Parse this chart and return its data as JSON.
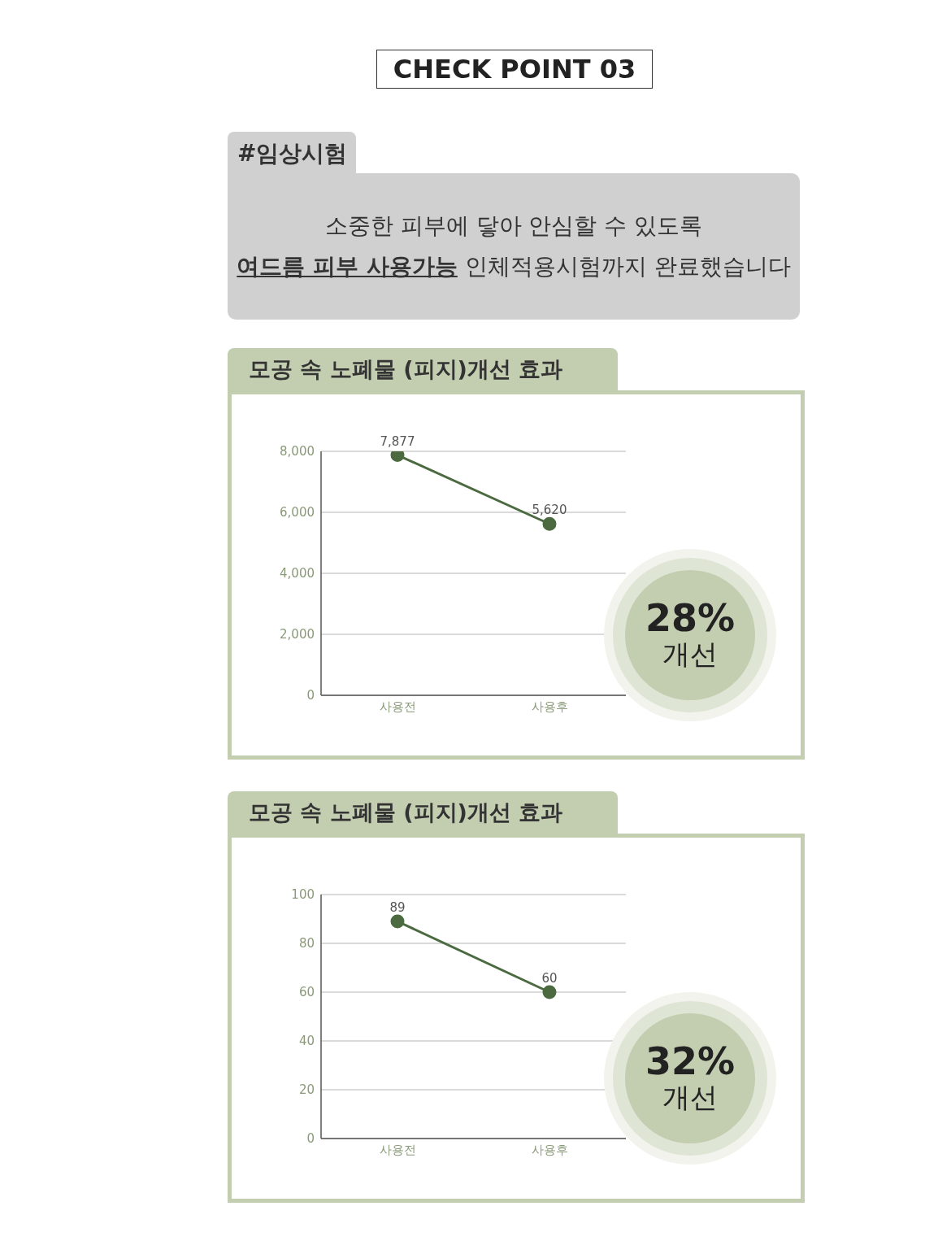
{
  "chart_data": [
    {
      "type": "other",
      "title": "CHECK POINT 03",
      "subtitle": "#임상시험",
      "annotations": [
        "소중한 피부에 닿아 안심할 수 있도록",
        "여드름 피부 사용가능",
        "인체적용시험까지 완료했습니다"
      ]
    },
    {
      "type": "line",
      "title": "모공 속 노폐물 (피지)개선 효과",
      "categories": [
        "사용전",
        "사용후"
      ],
      "values": [
        7877,
        5620
      ],
      "value_labels": [
        "7,877",
        "5,620"
      ],
      "color": "#4b6a3f",
      "marker": "circle",
      "ylim": [
        0,
        8000
      ],
      "yticks": [
        0,
        {
          "value": 2000,
          "label": "2,000"
        },
        {
          "value": 4000,
          "label": "4,000"
        },
        {
          "value": 6000,
          "label": "6,000"
        },
        {
          "value": 8000,
          "label": "8,000"
        }
      ],
      "grid": "y",
      "annotations": [
        "28%",
        "개선"
      ]
    },
    {
      "type": "line",
      "title": "모공 속 노폐물 (피지)개선 효과",
      "categories": [
        "사용전",
        "사용후"
      ],
      "values": [
        89,
        60
      ],
      "data_labels": true,
      "color": "#4b6a3f",
      "marker": "circle",
      "ylim": [
        0,
        100
      ],
      "yticks": [
        0,
        20,
        40,
        60,
        80,
        100
      ],
      "grid": "y",
      "annotations": [
        "32%",
        "개선"
      ]
    }
  ]
}
